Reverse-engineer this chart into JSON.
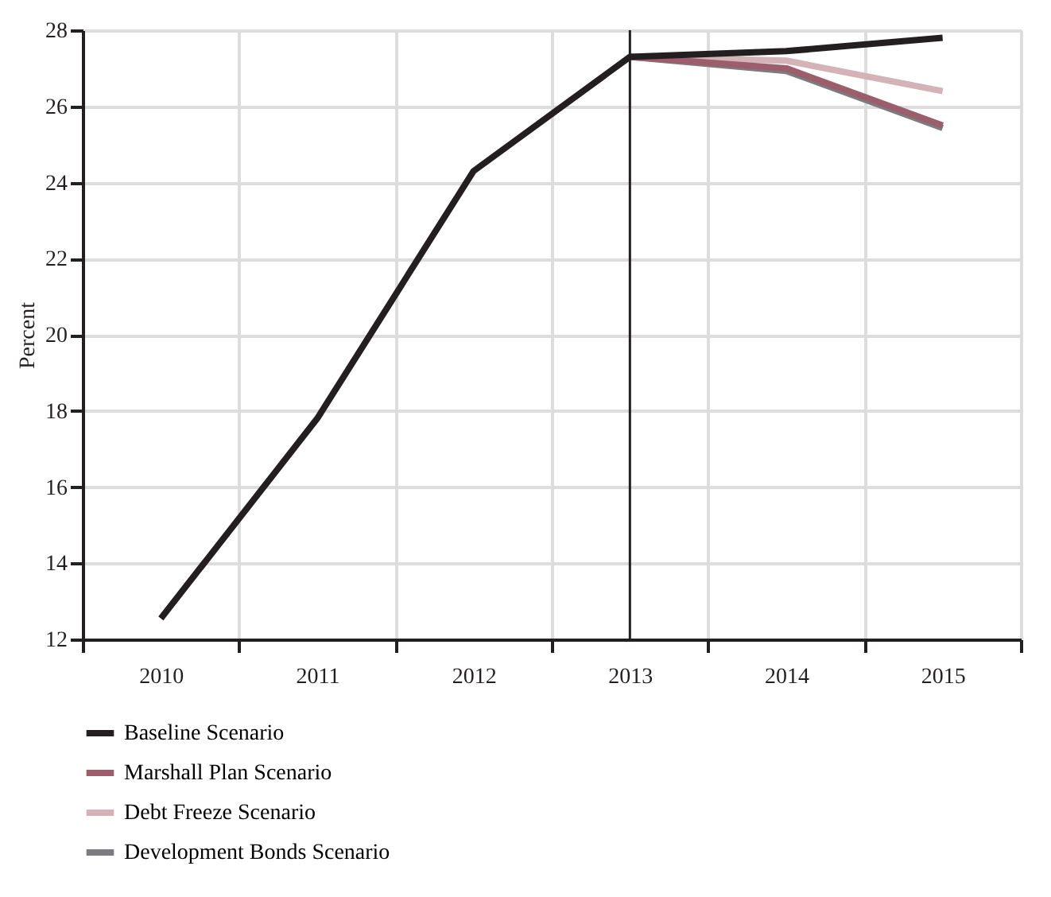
{
  "chart_data": {
    "type": "line",
    "ylabel": "Percent",
    "categories": [
      "2010",
      "2011",
      "2012",
      "2013",
      "2014",
      "2015"
    ],
    "ylim": [
      12,
      28
    ],
    "yticks": [
      12,
      14,
      16,
      18,
      20,
      22,
      24,
      26,
      28
    ],
    "series": [
      {
        "name": "Baseline Scenario",
        "color": "#231f20",
        "values": [
          12.55,
          17.8,
          24.3,
          27.3,
          27.45,
          27.8
        ]
      },
      {
        "name": "Marshall Plan Scenario",
        "color": "#9b5e6a",
        "values": [
          null,
          null,
          null,
          27.3,
          27.0,
          25.5
        ]
      },
      {
        "name": "Debt Freeze Scenario",
        "color": "#d4b3b6",
        "values": [
          null,
          null,
          null,
          27.3,
          27.2,
          26.4
        ]
      },
      {
        "name": "Development Bonds Scenario",
        "color": "#7b7b80",
        "values": [
          null,
          null,
          null,
          27.3,
          26.93,
          25.43
        ]
      }
    ],
    "ref_lines": [
      {
        "axis": "x",
        "value": "2013",
        "color": "#231f20"
      }
    ],
    "grid": true,
    "legend": "bottom",
    "marker": "none",
    "line_style": "solid"
  }
}
